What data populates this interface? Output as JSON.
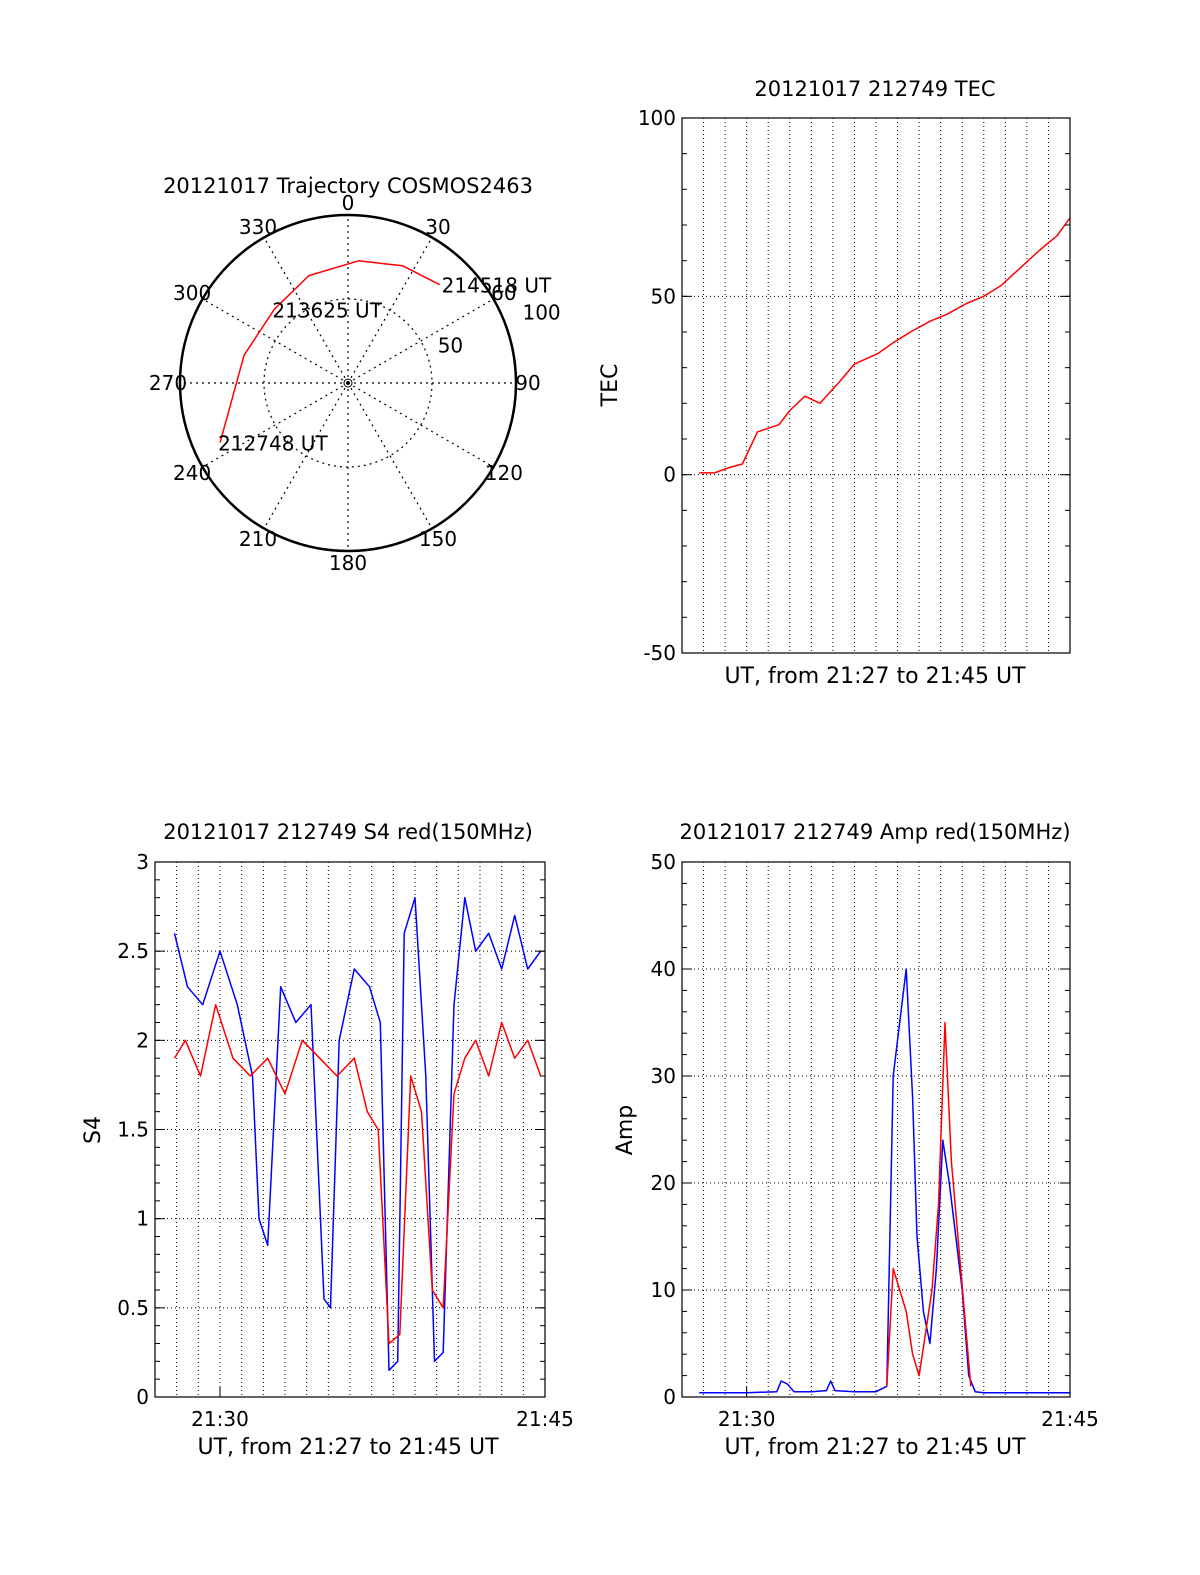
{
  "chart_data": [
    {
      "type": "polar",
      "title": "20121017 Trajectory COSMOS2463",
      "azimuth_labels": [
        "0",
        "30",
        "60",
        "90",
        "120",
        "150",
        "180",
        "210",
        "240",
        "270",
        "300",
        "330"
      ],
      "radius_labels": [
        "50",
        "100"
      ],
      "radius_max": 100,
      "series": [
        {
          "color": "#ff0000",
          "points": [
            {
              "az": 245,
              "r": 84,
              "label": "212748 UT"
            },
            {
              "az": 285,
              "r": 64,
              "label": ""
            },
            {
              "az": 315,
              "r": 62,
              "label": "213625 UT"
            },
            {
              "az": 340,
              "r": 68,
              "label": ""
            },
            {
              "az": 5,
              "r": 73,
              "label": ""
            },
            {
              "az": 25,
              "r": 77,
              "label": ""
            },
            {
              "az": 43,
              "r": 80,
              "label": "214518 UT"
            }
          ]
        }
      ]
    },
    {
      "type": "line",
      "title": "20121017 212749 TEC",
      "xlabel": "UT, from 21:27 to 21:45 UT",
      "ylabel": "TEC",
      "ylim": [
        -50,
        100
      ],
      "yticks": [
        "100",
        "50",
        "0",
        "-50"
      ],
      "xlim_minutes": [
        27.0,
        45.0
      ],
      "xticks": [],
      "series": [
        {
          "color": "#ff0000",
          "x": [
            27.8,
            28.5,
            29.2,
            29.8,
            30.5,
            31.5,
            32.0,
            32.7,
            33.4,
            34.3,
            35.0,
            36.1,
            36.8,
            37.6,
            38.5,
            39.3,
            40.2,
            41.0,
            41.8,
            42.7,
            43.6,
            44.4,
            45.0
          ],
          "y": [
            0.5,
            0.5,
            2,
            3,
            12,
            14,
            18,
            22,
            20,
            26,
            31,
            34,
            37,
            40,
            43,
            45,
            48,
            50,
            53,
            58,
            63,
            67,
            72
          ]
        }
      ]
    },
    {
      "type": "line",
      "title": "20121017 212749 S4 red(150MHz)",
      "xlabel": "UT, from 21:27 to 21:45 UT",
      "ylabel": "S4",
      "ylim": [
        0,
        3
      ],
      "yticks": [
        "3",
        "2.5",
        "2",
        "1.5",
        "1",
        "0.5",
        "0"
      ],
      "xlim_minutes": [
        27.0,
        45.0
      ],
      "xticks": [
        {
          "at": 30,
          "label": "21:30"
        },
        {
          "at": 45,
          "label": "21:45"
        }
      ],
      "series": [
        {
          "color": "#0000ff",
          "x": [
            27.9,
            28.5,
            29.2,
            30.0,
            30.8,
            31.5,
            31.8,
            32.2,
            32.8,
            33.5,
            34.2,
            34.8,
            35.1,
            35.5,
            36.2,
            36.9,
            37.4,
            37.8,
            38.2,
            38.5,
            39.0,
            39.5,
            39.9,
            40.3,
            40.8,
            41.3,
            41.8,
            42.4,
            43.0,
            43.6,
            44.2,
            44.8
          ],
          "y": [
            2.6,
            2.3,
            2.2,
            2.5,
            2.2,
            1.8,
            1.0,
            0.85,
            2.3,
            2.1,
            2.2,
            0.55,
            0.5,
            2.0,
            2.4,
            2.3,
            2.1,
            0.15,
            0.2,
            2.6,
            2.8,
            1.8,
            0.2,
            0.25,
            2.2,
            2.8,
            2.5,
            2.6,
            2.4,
            2.7,
            2.4,
            2.5
          ]
        },
        {
          "color": "#ff0000",
          "x": [
            27.9,
            28.4,
            29.1,
            29.8,
            30.6,
            31.4,
            32.2,
            33.0,
            33.8,
            34.6,
            35.4,
            36.2,
            36.8,
            37.3,
            37.8,
            38.3,
            38.8,
            39.3,
            39.8,
            40.3,
            40.8,
            41.3,
            41.8,
            42.4,
            43.0,
            43.6,
            44.2,
            44.8
          ],
          "y": [
            1.9,
            2.0,
            1.8,
            2.2,
            1.9,
            1.8,
            1.9,
            1.7,
            2.0,
            1.9,
            1.8,
            1.9,
            1.6,
            1.5,
            0.3,
            0.35,
            1.8,
            1.6,
            0.6,
            0.5,
            1.7,
            1.9,
            2.0,
            1.8,
            2.1,
            1.9,
            2.0,
            1.8
          ]
        }
      ]
    },
    {
      "type": "line",
      "title": "20121017 212749 Amp red(150MHz)",
      "xlabel": "UT, from 21:27 to 21:45 UT",
      "ylabel": "Amp",
      "ylim": [
        0,
        50
      ],
      "yticks": [
        "50",
        "40",
        "30",
        "20",
        "10",
        "0"
      ],
      "xlim_minutes": [
        27.0,
        45.0
      ],
      "xticks": [
        {
          "at": 30,
          "label": "21:30"
        },
        {
          "at": 45,
          "label": "21:45"
        }
      ],
      "series": [
        {
          "color": "#0000ff",
          "x": [
            27.8,
            29.0,
            30.0,
            31.4,
            31.6,
            31.9,
            32.2,
            33.0,
            33.7,
            33.9,
            34.1,
            35.0,
            36.0,
            36.5,
            36.8,
            37.1,
            37.4,
            37.7,
            37.9,
            38.2,
            38.5,
            38.8,
            39.1,
            39.4,
            39.7,
            40.0,
            40.3,
            40.6,
            41.0,
            42.0,
            43.0,
            44.0,
            45.0
          ],
          "y": [
            0.4,
            0.4,
            0.4,
            0.5,
            1.5,
            1.2,
            0.5,
            0.5,
            0.6,
            1.5,
            0.6,
            0.5,
            0.5,
            1.0,
            30,
            35,
            40,
            28,
            15,
            8,
            5,
            12,
            24,
            20,
            15,
            10,
            2,
            0.5,
            0.4,
            0.4,
            0.4,
            0.4,
            0.4
          ]
        },
        {
          "color": "#ff0000",
          "x": [
            36.5,
            36.8,
            37.1,
            37.4,
            37.7,
            38.0,
            38.3,
            38.6,
            38.9,
            39.2,
            39.5,
            39.8,
            40.1,
            40.4
          ],
          "y": [
            1.0,
            12,
            10,
            8,
            4,
            2,
            6,
            10,
            18,
            35,
            22,
            15,
            8,
            1
          ]
        }
      ]
    }
  ]
}
